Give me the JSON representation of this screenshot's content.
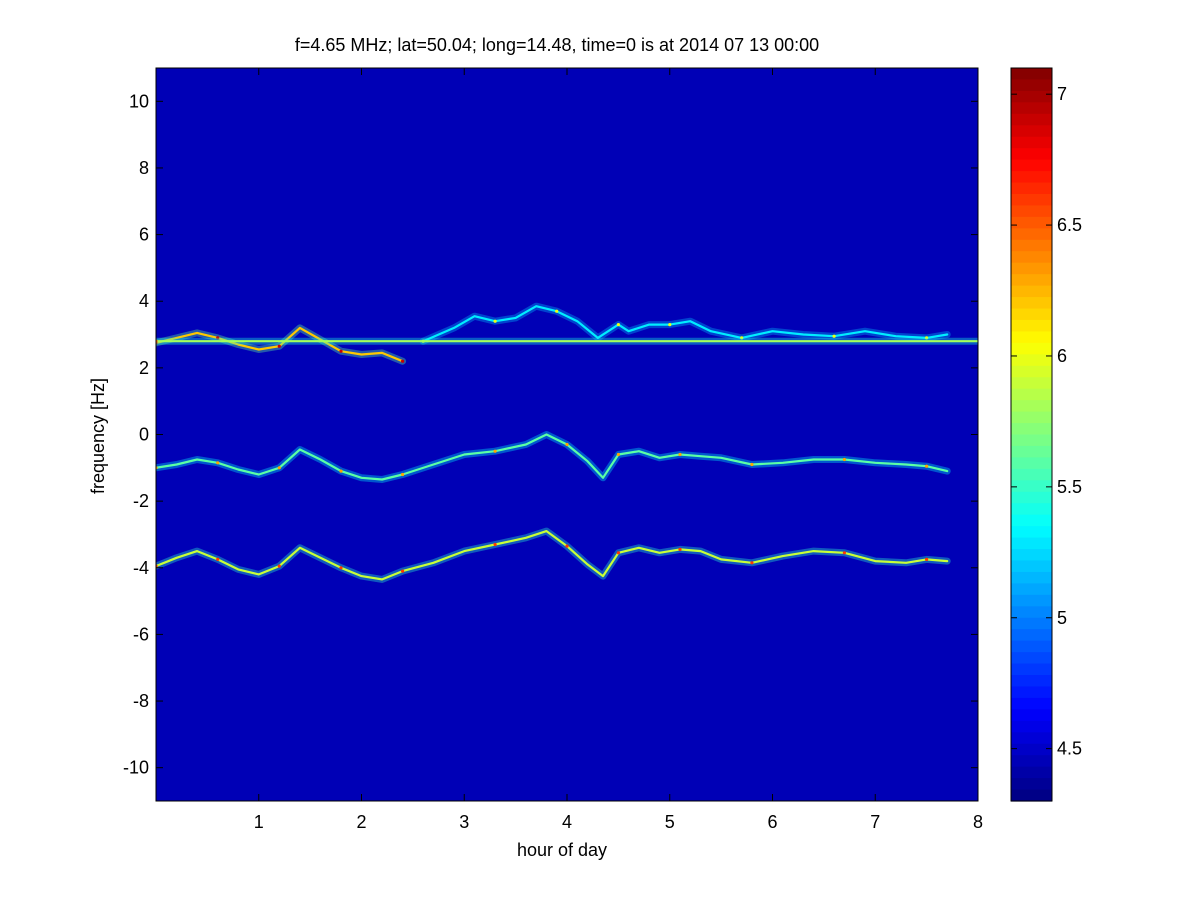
{
  "chart_data": {
    "type": "heatmap",
    "title": "f=4.65 MHz;  lat=50.04; long=14.48, time=0 is at 2014 07 13 00:00",
    "xlabel": "hour of day",
    "ylabel": "frequency [Hz]",
    "xlim": [
      0,
      8
    ],
    "ylim": [
      -11,
      11
    ],
    "xticks": [
      1,
      2,
      3,
      4,
      5,
      6,
      7,
      8
    ],
    "yticks": [
      -10,
      -8,
      -6,
      -4,
      -2,
      0,
      2,
      4,
      6,
      8,
      10
    ],
    "colorbar": {
      "colormap": "jet",
      "clim": [
        4.3,
        7.1
      ],
      "ticks": [
        4.5,
        5,
        5.5,
        6,
        6.5,
        7
      ]
    },
    "grid": false,
    "background_level": 4.45,
    "traces": [
      {
        "name": "",
        "x": [
          0.0,
          0.2,
          0.4,
          0.6,
          0.8,
          1.0,
          1.2,
          1.4,
          1.6,
          1.8,
          2.0,
          2.2,
          2.4
        ],
        "y": [
          2.75,
          2.9,
          3.05,
          2.9,
          2.7,
          2.55,
          2.65,
          3.2,
          2.85,
          2.5,
          2.4,
          2.45,
          2.2
        ],
        "level": 6.2
      },
      {
        "name": "",
        "x": [
          2.6,
          2.9,
          3.1,
          3.3,
          3.5,
          3.7,
          3.9,
          4.1,
          4.3,
          4.5,
          4.6,
          4.8,
          5.0,
          5.2,
          5.4,
          5.7,
          6.0,
          6.3,
          6.6,
          6.9,
          7.2,
          7.5,
          7.7
        ],
        "y": [
          2.8,
          3.2,
          3.55,
          3.4,
          3.5,
          3.85,
          3.7,
          3.4,
          2.9,
          3.3,
          3.1,
          3.3,
          3.3,
          3.4,
          3.1,
          2.9,
          3.1,
          3.0,
          2.95,
          3.1,
          2.95,
          2.9,
          3.0
        ],
        "level": 5.3
      },
      {
        "name": "",
        "x": [
          0.0,
          0.2,
          0.4,
          0.6,
          0.8,
          1.0,
          1.2,
          1.4,
          1.6,
          1.8,
          2.0,
          2.2,
          2.4,
          2.7,
          3.0,
          3.3,
          3.6,
          3.8,
          4.0,
          4.2,
          4.35,
          4.5,
          4.7,
          4.9,
          5.1,
          5.3,
          5.5,
          5.8,
          6.1,
          6.4,
          6.7,
          7.0,
          7.3,
          7.5,
          7.7
        ],
        "y": [
          -1.0,
          -0.9,
          -0.75,
          -0.85,
          -1.05,
          -1.2,
          -1.0,
          -0.45,
          -0.75,
          -1.1,
          -1.3,
          -1.35,
          -1.2,
          -0.9,
          -0.6,
          -0.5,
          -0.3,
          0.0,
          -0.3,
          -0.8,
          -1.3,
          -0.6,
          -0.5,
          -0.7,
          -0.6,
          -0.65,
          -0.7,
          -0.9,
          -0.85,
          -0.75,
          -0.75,
          -0.85,
          -0.9,
          -0.95,
          -1.1
        ],
        "level": 5.6
      },
      {
        "name": "",
        "x": [
          0.0,
          0.2,
          0.4,
          0.6,
          0.8,
          1.0,
          1.2,
          1.4,
          1.6,
          1.8,
          2.0,
          2.2,
          2.4,
          2.7,
          3.0,
          3.3,
          3.6,
          3.8,
          4.0,
          4.2,
          4.35,
          4.5,
          4.7,
          4.9,
          5.1,
          5.3,
          5.5,
          5.8,
          6.1,
          6.4,
          6.7,
          7.0,
          7.3,
          7.5,
          7.7
        ],
        "y": [
          -3.95,
          -3.7,
          -3.5,
          -3.75,
          -4.05,
          -4.2,
          -3.95,
          -3.4,
          -3.7,
          -4.0,
          -4.25,
          -4.35,
          -4.1,
          -3.85,
          -3.5,
          -3.3,
          -3.1,
          -2.9,
          -3.35,
          -3.9,
          -4.25,
          -3.55,
          -3.4,
          -3.55,
          -3.45,
          -3.5,
          -3.75,
          -3.85,
          -3.65,
          -3.5,
          -3.55,
          -3.8,
          -3.85,
          -3.75,
          -3.8
        ],
        "level": 5.9
      },
      {
        "name": "",
        "x": [
          0.0,
          8.0
        ],
        "y": [
          2.8,
          2.8
        ],
        "level": 5.8
      }
    ]
  }
}
